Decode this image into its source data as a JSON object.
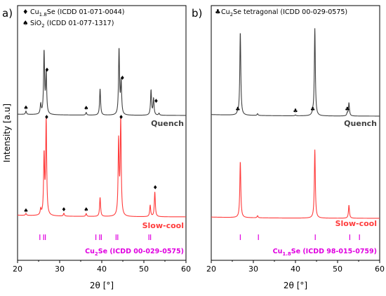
{
  "chart_data": [
    {
      "type": "line",
      "panel_label": "a)",
      "xlabel": "2θ [°]",
      "ylabel": "Intensity [a.u]",
      "xlim": [
        20,
        60
      ],
      "xticks": [
        "20",
        "30",
        "40",
        "50",
        "60"
      ],
      "legend": [
        {
          "symbol": "♦",
          "text": "Cu1.8Se (ICDD 01-071-0044)"
        },
        {
          "symbol": "♠",
          "text": "SiO2 (ICDD 01-077-1317)"
        }
      ],
      "series": [
        {
          "name": "Quench",
          "color": "#404040",
          "peaks": [
            [
              22.0,
              0.05
            ],
            [
              25.5,
              0.15
            ],
            [
              26.3,
              0.95
            ],
            [
              26.8,
              0.62
            ],
            [
              36.3,
              0.04
            ],
            [
              39.6,
              0.4
            ],
            [
              44.1,
              1.0
            ],
            [
              44.6,
              0.5
            ],
            [
              51.7,
              0.38
            ],
            [
              52.3,
              0.25
            ],
            [
              53.6,
              0.03
            ]
          ],
          "markers": [
            {
              "x": 22.0,
              "y": 0.05,
              "symbol": "♠"
            },
            {
              "x": 27.0,
              "y": 0.62,
              "symbol": "♦"
            },
            {
              "x": 36.3,
              "y": 0.04,
              "symbol": "♠"
            },
            {
              "x": 44.9,
              "y": 0.5,
              "symbol": "♦"
            },
            {
              "x": 52.9,
              "y": 0.15,
              "symbol": "♦"
            }
          ]
        },
        {
          "name": "Slow-cool",
          "color": "#ff3b3b",
          "peaks": [
            [
              22.0,
              0.02
            ],
            [
              25.5,
              0.06
            ],
            [
              26.3,
              0.62
            ],
            [
              26.8,
              1.0
            ],
            [
              31.0,
              0.03
            ],
            [
              36.3,
              0.03
            ],
            [
              39.6,
              0.2
            ],
            [
              44.0,
              0.78
            ],
            [
              44.5,
              1.0
            ],
            [
              51.5,
              0.12
            ],
            [
              52.6,
              0.26
            ]
          ],
          "markers": [
            {
              "x": 22.0,
              "y": 0.02,
              "symbol": "♠"
            },
            {
              "x": 26.9,
              "y": 1.0,
              "symbol": "♦"
            },
            {
              "x": 31.0,
              "y": 0.03,
              "symbol": "♦"
            },
            {
              "x": 36.3,
              "y": 0.03,
              "symbol": "♠"
            },
            {
              "x": 44.6,
              "y": 1.0,
              "symbol": "♦"
            },
            {
              "x": 52.7,
              "y": 0.26,
              "symbol": "♦"
            }
          ]
        }
      ],
      "reference": {
        "label": "Cu2Se (ICDD 00-029-0575)",
        "color": "#e000e0",
        "positions": [
          25.3,
          26.2,
          26.6,
          38.6,
          39.5,
          39.9,
          43.4,
          43.8,
          51.2,
          51.6
        ]
      }
    },
    {
      "type": "line",
      "panel_label": "b)",
      "xlabel": "2θ [°]",
      "xlim": [
        20,
        60
      ],
      "xticks": [
        "20",
        "30",
        "40",
        "50",
        "60"
      ],
      "legend": [
        {
          "symbol": "♣",
          "text": "Cu2Se tetragonal (ICDD 00-029-0575)"
        }
      ],
      "series": [
        {
          "name": "Quench",
          "color": "#404040",
          "peaks": [
            [
              26.3,
              0.03
            ],
            [
              26.9,
              0.95
            ],
            [
              31.0,
              0.02
            ],
            [
              40.0,
              0.01
            ],
            [
              44.1,
              0.03
            ],
            [
              44.6,
              1.0
            ],
            [
              52.3,
              0.03
            ],
            [
              52.7,
              0.15
            ]
          ],
          "markers": [
            {
              "x": 26.3,
              "y": 0.03,
              "symbol": "♣"
            },
            {
              "x": 40.0,
              "y": 0.01,
              "symbol": "♣"
            },
            {
              "x": 44.1,
              "y": 0.03,
              "symbol": "♣"
            },
            {
              "x": 52.3,
              "y": 0.03,
              "symbol": "♣"
            }
          ]
        },
        {
          "name": "Slow-cool",
          "color": "#ff3b3b",
          "peaks": [
            [
              26.9,
              0.82
            ],
            [
              31.0,
              0.03
            ],
            [
              44.6,
              1.0
            ],
            [
              52.7,
              0.19
            ]
          ],
          "markers": []
        }
      ],
      "reference": {
        "label": "Cu1.8Se (ICDD 98-015-0759)",
        "color": "#e000e0",
        "positions": [
          26.9,
          31.2,
          44.7,
          52.9,
          55.2
        ]
      }
    }
  ]
}
